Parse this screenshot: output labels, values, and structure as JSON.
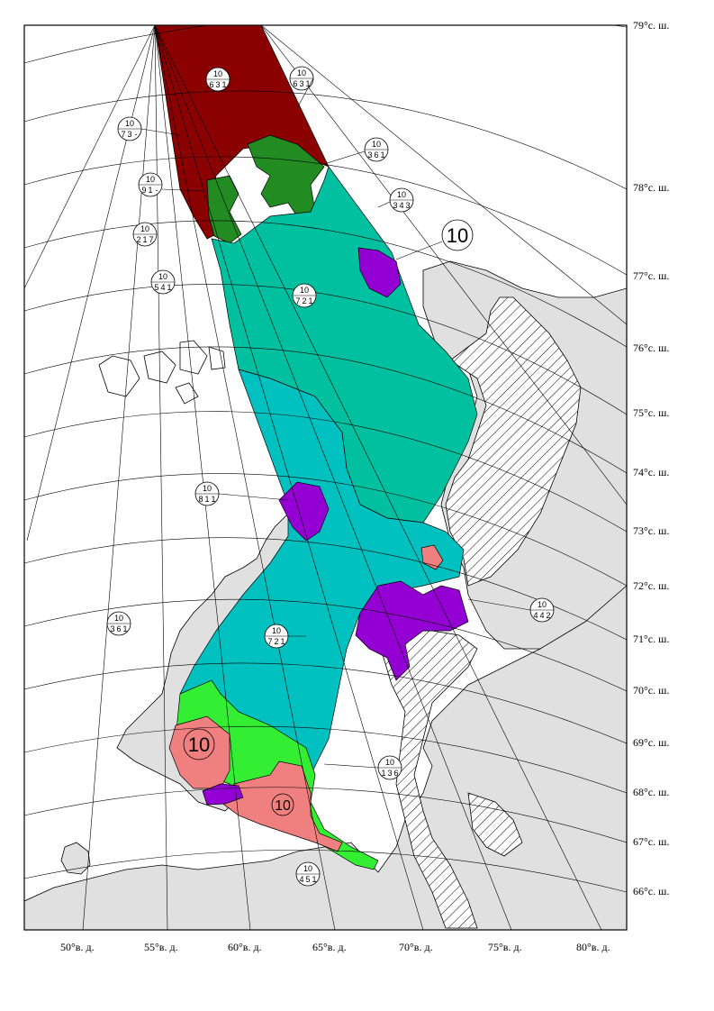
{
  "map": {
    "lat_labels": [
      "79°с. ш.",
      "78°с. ш.",
      "77°с. ш.",
      "76°с. ш.",
      "75°с. ш.",
      "74°с. ш.",
      "73°с. ш.",
      "72°с. ш.",
      "71°с. ш.",
      "70°с. ш.",
      "69°с. ш.",
      "68°с. ш.",
      "67°с. ш.",
      "66°с. ш."
    ],
    "lon_labels": [
      "50°в. д.",
      "55°в. д.",
      "60°в. д.",
      "65°в. д.",
      "70°в. д.",
      "75°в. д.",
      "80°в. д."
    ],
    "zone_colors": {
      "dark_red": "#8b0000",
      "dark_green": "#228b22",
      "teal": "#00c0a0",
      "cyan": "#00c0c0",
      "purple": "#9400d3",
      "salmon": "#f08080",
      "bright_green": "#33ee33",
      "land": "#e0e0e0"
    },
    "codes": [
      {
        "top": "10",
        "row": [
          "7",
          "3",
          "-"
        ]
      },
      {
        "top": "10",
        "row": [
          "6",
          "3",
          "1"
        ]
      },
      {
        "top": "10",
        "row": [
          "9",
          "1",
          "-"
        ]
      },
      {
        "top": "10",
        "row": [
          "3",
          "4",
          "3"
        ]
      },
      {
        "top": "10",
        "row": [
          "3",
          "6",
          "1"
        ]
      },
      {
        "top": "10",
        "row": [
          "2",
          "1",
          "7"
        ]
      },
      {
        "top": "10",
        "row": [
          "5",
          "4",
          "1"
        ]
      },
      {
        "top": "10",
        "row": [
          "7",
          "2",
          "1"
        ]
      },
      {
        "top": "10",
        "row": [
          "8",
          "1",
          "1"
        ]
      },
      {
        "top": "10",
        "row": [
          "4",
          "4",
          "2"
        ]
      },
      {
        "top": "10",
        "row": [
          "3",
          "6",
          "1"
        ]
      },
      {
        "top": "10",
        "row": [
          "7",
          "2",
          "1"
        ]
      },
      {
        "top": "10",
        "row": [
          "1",
          "3",
          "6"
        ]
      },
      {
        "top": "10",
        "row": [
          "6",
          "3",
          "1"
        ]
      },
      {
        "top": "10",
        "row": [
          "4",
          "5",
          "1"
        ]
      }
    ],
    "big_codes": [
      "10",
      "10",
      "10"
    ]
  }
}
